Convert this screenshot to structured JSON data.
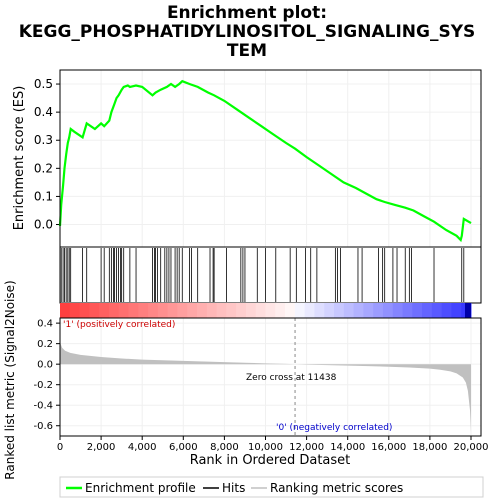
{
  "title_line1": "Enrichment plot:",
  "title_line2": "KEGG_PHOSPHATIDYLINOSITOL_SIGNALING_SYS",
  "title_line3": "TEM",
  "colors": {
    "enrichment_line": "#00ff00",
    "hits": "#000000",
    "metric": "#c0c0c0",
    "positive_band": "#ff0000",
    "negative_band": "#0000ff",
    "zero_line": "#000000",
    "grid": "#f0f0f0"
  },
  "legend": {
    "enrichment": "Enrichment profile",
    "hits": "Hits",
    "ranking": "Ranking metric scores"
  },
  "annotations": {
    "positive": "'1' (positively correlated)",
    "negative": "'0' (negatively correlated)",
    "zero_cross": "Zero cross at 11438"
  },
  "chart_data": [
    {
      "type": "line",
      "panel": "enrichment",
      "ylabel": "Enrichment score (ES)",
      "xlim": [
        0,
        20000
      ],
      "ylim": [
        -0.08,
        0.55
      ],
      "yticks": [
        0.0,
        0.1,
        0.2,
        0.3,
        0.4,
        0.5
      ],
      "y_tick_labels": [
        "0.0",
        "0.1",
        "0.2",
        "0.3",
        "0.4",
        "0.5"
      ],
      "grid": true,
      "series": [
        {
          "name": "Enrichment profile",
          "x": [
            0,
            60,
            150,
            220,
            300,
            380,
            450,
            520,
            700,
            1100,
            1300,
            1700,
            2000,
            2150,
            2400,
            2500,
            2650,
            2750,
            2850,
            3000,
            3100,
            3300,
            3400,
            3700,
            4000,
            4500,
            4650,
            4900,
            5200,
            5400,
            5600,
            5800,
            5950,
            6300,
            6700,
            7200,
            7500,
            8000,
            8600,
            9200,
            9800,
            10400,
            11000,
            11438,
            12000,
            12600,
            13200,
            13800,
            14400,
            14900,
            15400,
            15800,
            16300,
            16800,
            17200,
            17700,
            18200,
            18800,
            19300,
            19500,
            19550,
            19650,
            20000
          ],
          "y": [
            -0.005,
            0.07,
            0.14,
            0.2,
            0.25,
            0.29,
            0.31,
            0.34,
            0.33,
            0.31,
            0.36,
            0.34,
            0.36,
            0.35,
            0.37,
            0.4,
            0.43,
            0.45,
            0.46,
            0.48,
            0.49,
            0.495,
            0.49,
            0.495,
            0.49,
            0.46,
            0.47,
            0.48,
            0.49,
            0.5,
            0.49,
            0.5,
            0.51,
            0.5,
            0.49,
            0.47,
            0.46,
            0.44,
            0.41,
            0.38,
            0.35,
            0.32,
            0.29,
            0.27,
            0.24,
            0.21,
            0.18,
            0.15,
            0.13,
            0.11,
            0.09,
            0.08,
            0.07,
            0.06,
            0.05,
            0.03,
            0.01,
            -0.02,
            -0.04,
            -0.055,
            -0.04,
            0.02,
            0.005
          ]
        }
      ]
    },
    {
      "type": "scatter",
      "panel": "hits",
      "series": [
        {
          "name": "Hits",
          "x": [
            60,
            150,
            220,
            300,
            380,
            450,
            520,
            1100,
            1300,
            2000,
            2150,
            2400,
            2500,
            2600,
            2650,
            2750,
            2850,
            2950,
            3000,
            3100,
            3400,
            3700,
            4500,
            4600,
            4650,
            4750,
            4900,
            5100,
            5200,
            5300,
            5400,
            5600,
            5700,
            5800,
            5950,
            6300,
            6400,
            6700,
            7300,
            7450,
            7500,
            8100,
            8800,
            8900,
            9000,
            9600,
            10000,
            10500,
            11200,
            11500,
            11950,
            12200,
            12500,
            13400,
            13500,
            13650,
            14500,
            14700,
            15500,
            15700,
            15800,
            16200,
            16400,
            16800,
            17000,
            17100,
            18200,
            19550,
            19650
          ]
        }
      ]
    },
    {
      "type": "area",
      "panel": "ranking",
      "ylabel": "Ranked list metric (Signal2Noise)",
      "xlabel": "Rank in Ordered Dataset",
      "xlim": [
        0,
        20000
      ],
      "ylim": [
        -0.7,
        0.45
      ],
      "yticks": [
        -0.6,
        -0.4,
        -0.2,
        0.0,
        0.2,
        0.4
      ],
      "y_tick_labels": [
        "-0.6",
        "-0.4",
        "-0.2",
        "0.0",
        "0.2",
        "0.4"
      ],
      "xticks": [
        0,
        2000,
        4000,
        6000,
        8000,
        10000,
        12000,
        14000,
        16000,
        18000,
        20000
      ],
      "x_tick_labels": [
        "0",
        "2,000",
        "4,000",
        "6,000",
        "8,000",
        "10,000",
        "12,000",
        "14,000",
        "16,000",
        "18,000",
        "20,000"
      ],
      "zero_cross": 11438,
      "series": [
        {
          "name": "Ranking metric scores",
          "x": [
            0,
            30,
            100,
            250,
            500,
            1000,
            2000,
            3000,
            4000,
            5000,
            6000,
            7000,
            8000,
            9000,
            10000,
            11000,
            11438,
            12000,
            13000,
            14000,
            15000,
            16000,
            17000,
            18000,
            18500,
            19000,
            19300,
            19600,
            19750,
            19850,
            19950,
            20000
          ],
          "y": [
            0.26,
            0.2,
            0.16,
            0.13,
            0.11,
            0.09,
            0.07,
            0.055,
            0.045,
            0.038,
            0.032,
            0.026,
            0.02,
            0.014,
            0.008,
            0.003,
            0.0,
            -0.004,
            -0.009,
            -0.014,
            -0.019,
            -0.025,
            -0.032,
            -0.043,
            -0.055,
            -0.07,
            -0.09,
            -0.13,
            -0.18,
            -0.26,
            -0.45,
            -0.66
          ]
        }
      ]
    }
  ]
}
